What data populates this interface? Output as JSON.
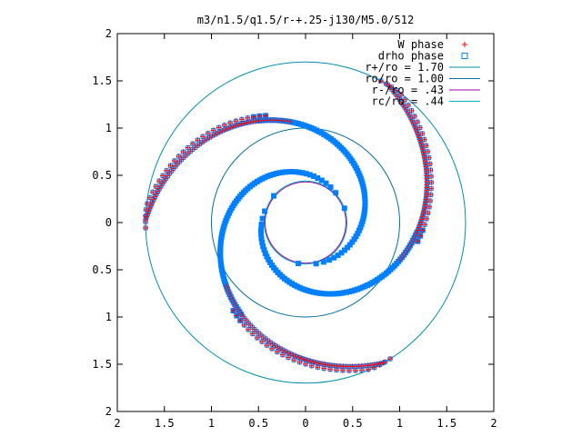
{
  "chart_data": {
    "type": "scatter",
    "title": "m3/n1.5/q1.5/r-+.25-j130/M5.0/512",
    "xlabel": "",
    "ylabel": "",
    "xlim": [
      -2,
      2
    ],
    "ylim": [
      -2,
      2
    ],
    "x_tick_labels": [
      "2",
      "1.5",
      "1",
      "0.5",
      "0",
      "0.5",
      "1",
      "1.5",
      "2"
    ],
    "y_tick_labels": [
      "2",
      "1.5",
      "1",
      "0.5",
      "0",
      "0.5",
      "1",
      "1.5",
      "2"
    ],
    "grid": false,
    "legend_position": "top-right",
    "series": [
      {
        "name": "W phase",
        "marker": "plus",
        "color": "#ff0000",
        "note_spiral": {
          "arms": 3,
          "r_inner": 0.44,
          "r_outer": 1.7
        }
      },
      {
        "name": "drho phase",
        "marker": "square",
        "color": "#0080ff",
        "note_spiral": {
          "arms": 3,
          "r_inner": 0.44,
          "r_outer": 1.7
        }
      }
    ],
    "circles": [
      {
        "name": "r+/ro = 1.70",
        "radius": 1.7,
        "color": "#0090b0"
      },
      {
        "name": "ro/ro = 1.00",
        "radius": 1.0,
        "color": "#0070a0"
      },
      {
        "name": "r-/ro =   .43",
        "radius": 0.43,
        "color": "#a000a0"
      },
      {
        "name": "rc/ro =   .44",
        "radius": 0.44,
        "color": "#00b0c0"
      }
    ]
  }
}
